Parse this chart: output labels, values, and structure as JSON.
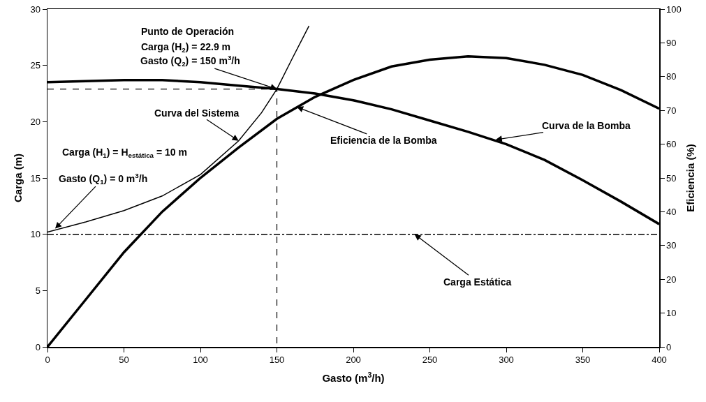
{
  "chart_data": {
    "type": "line",
    "xlabel": "Gasto (m$^{3}$/h)",
    "ylabel": "Carga (m)",
    "y2label": "Eficiencia (%)",
    "xlim": [
      0,
      400
    ],
    "xticks": [
      0,
      50,
      100,
      150,
      200,
      250,
      300,
      350,
      400
    ],
    "ylim": [
      0,
      30
    ],
    "yticks": [
      0,
      5,
      10,
      15,
      20,
      25,
      30
    ],
    "y2lim": [
      0,
      100
    ],
    "y2ticks": [
      0,
      10,
      20,
      30,
      40,
      50,
      60,
      70,
      80,
      90,
      100
    ],
    "grid": false,
    "marker": "none",
    "series": [
      {
        "color": "#000000",
        "line_style": "solid",
        "x": [
          0,
          25,
          50,
          75,
          100,
          125,
          150,
          175,
          200,
          225,
          250,
          275,
          300,
          325,
          350,
          375,
          400
        ],
        "values": [
          23.5,
          23.6,
          23.7,
          23.7,
          23.5,
          23.2,
          22.9,
          22.5,
          21.9,
          21.1,
          20.1,
          19.1,
          18.0,
          16.6,
          14.8,
          12.9,
          10.9
        ]
      },
      {
        "color": "#000000",
        "line_style": "solid",
        "axis": "y2",
        "x": [
          0,
          25,
          50,
          75,
          100,
          125,
          150,
          175,
          200,
          225,
          250,
          275,
          300,
          325,
          350,
          375,
          400
        ],
        "values": [
          0,
          14,
          28,
          40,
          50,
          59,
          67.5,
          74,
          79,
          83,
          85,
          86,
          85.5,
          83.5,
          80.5,
          76,
          70.5
        ]
      },
      {
        "color": "#000000",
        "line_style": "solid",
        "x": [
          0,
          25,
          50,
          75,
          100,
          125,
          140,
          150,
          160,
          171
        ],
        "values": [
          10.2,
          11.1,
          12.1,
          13.4,
          15.3,
          18.3,
          20.8,
          22.9,
          25.6,
          28.5
        ]
      },
      {
        "color": "#000000",
        "line_style": "dashed",
        "x": [
          0,
          150,
          150
        ],
        "values": [
          22.9,
          22.9,
          0
        ]
      }
    ],
    "ref_lines": [
      {
        "axis": "y",
        "value": 10,
        "color": "#000000",
        "line_style": "dotted"
      }
    ],
    "annotations": [
      "Punto de Operación",
      "Carga (H$_{2}$) = 22.9 m",
      {
        "text": "Gasto (Q$_{2}$) = 150 m$^{3}$/h",
        "x": 150,
        "y": 22.9
      },
      {
        "text": "Curva del Sistema",
        "x": 125,
        "y": 18.3
      },
      "Carga (H$_{1}$) = H$_{estática}$ = 10 m",
      {
        "text": "Gasto (Q$_{1}$) = 0 m$^{3}$/h",
        "x": 5,
        "y": 10.5
      },
      {
        "text": "Eficiencia de la Bomba",
        "x": 163,
        "y": 21.3
      },
      {
        "text": "Curva de la Bomba",
        "x": 293,
        "y": 18.4
      },
      {
        "text": "Carga Estática",
        "x": 240,
        "y": 10
      }
    ]
  }
}
